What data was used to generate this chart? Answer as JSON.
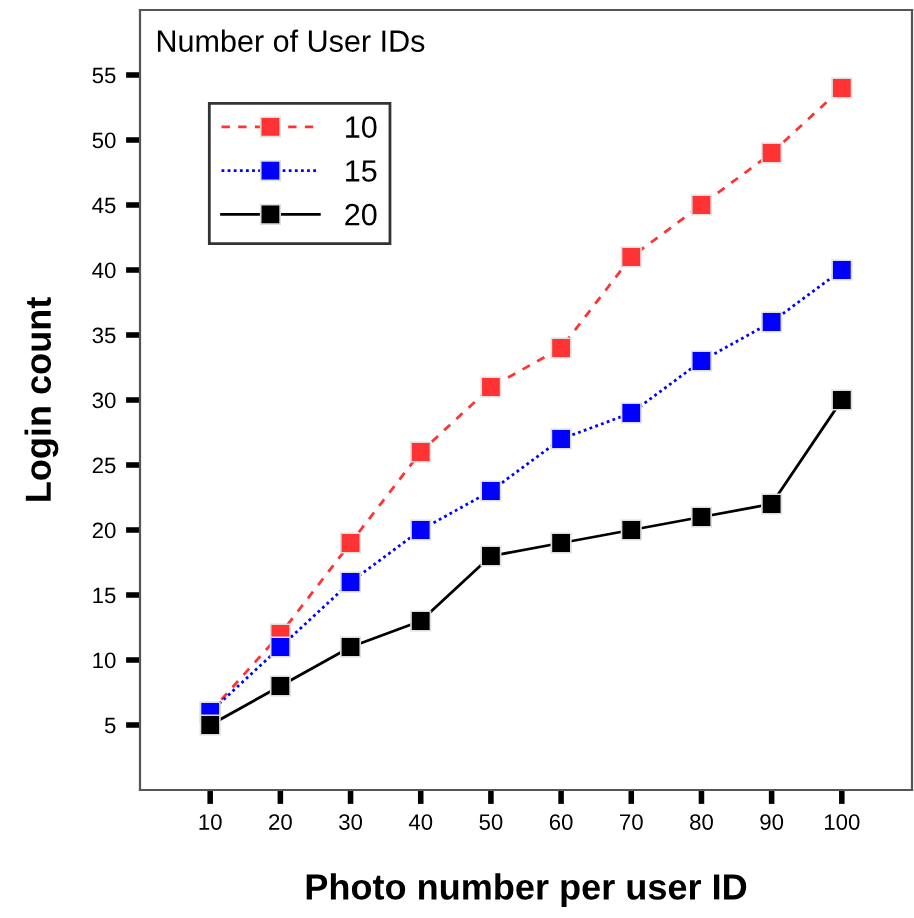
{
  "chart_data": {
    "type": "line",
    "xlabel": "Photo number per user ID",
    "ylabel": "Login count",
    "legend_title": "Number of User IDs",
    "legend": "top left",
    "marker": "square",
    "grid": false,
    "x": [
      10,
      20,
      30,
      40,
      50,
      60,
      70,
      80,
      90,
      100
    ],
    "xlim": [
      0,
      110
    ],
    "xticks": [
      10,
      20,
      30,
      40,
      50,
      60,
      70,
      80,
      90,
      100
    ],
    "ylim": [
      0,
      60
    ],
    "yticks": [
      5,
      10,
      15,
      20,
      25,
      30,
      35,
      40,
      45,
      50,
      55
    ],
    "series": [
      {
        "name": "10",
        "color": "#ff3333",
        "line_style": "dashed",
        "values": [
          6,
          12,
          19,
          26,
          31,
          34,
          41,
          45,
          49,
          54
        ]
      },
      {
        "name": "15",
        "color": "#0000ff",
        "line_style": "dotted",
        "values": [
          6,
          11,
          16,
          20,
          23,
          27,
          29,
          33,
          36,
          40
        ]
      },
      {
        "name": "20",
        "color": "#000000",
        "line_style": "solid",
        "values": [
          5,
          8,
          11,
          13,
          18,
          19,
          20,
          21,
          22,
          30
        ]
      }
    ]
  }
}
